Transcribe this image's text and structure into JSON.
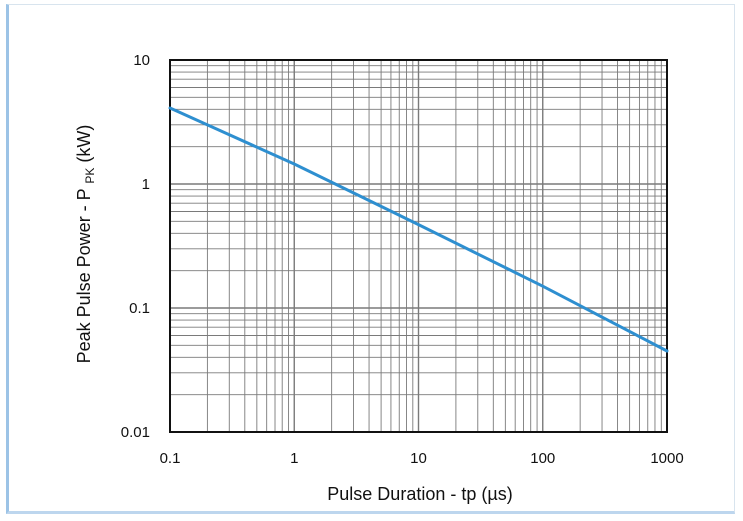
{
  "chart_data": {
    "type": "line",
    "xlabel": "Pulse Duration - tp (µs)",
    "ylabel_main": "Peak Pulse Power - P",
    "ylabel_sub": "PK",
    "ylabel_unit": " (kW)",
    "x_scale": "log",
    "y_scale": "log",
    "xlim": [
      0.1,
      1000
    ],
    "ylim": [
      0.01,
      10
    ],
    "x_ticks": [
      {
        "value": 0.1,
        "label": "0.1"
      },
      {
        "value": 1,
        "label": "1"
      },
      {
        "value": 10,
        "label": "10"
      },
      {
        "value": 100,
        "label": "100"
      },
      {
        "value": 1000,
        "label": "1000"
      }
    ],
    "y_ticks": [
      {
        "value": 10,
        "label": "10"
      },
      {
        "value": 1,
        "label": "1"
      },
      {
        "value": 0.1,
        "label": "0.1"
      },
      {
        "value": 0.01,
        "label": "0.01"
      }
    ],
    "grid": true,
    "line_color": "#2e8fd0",
    "series": [
      {
        "x": [
          0.1,
          1,
          10,
          100,
          1000
        ],
        "y": [
          4.1,
          1.45,
          0.47,
          0.15,
          0.045
        ]
      }
    ]
  }
}
